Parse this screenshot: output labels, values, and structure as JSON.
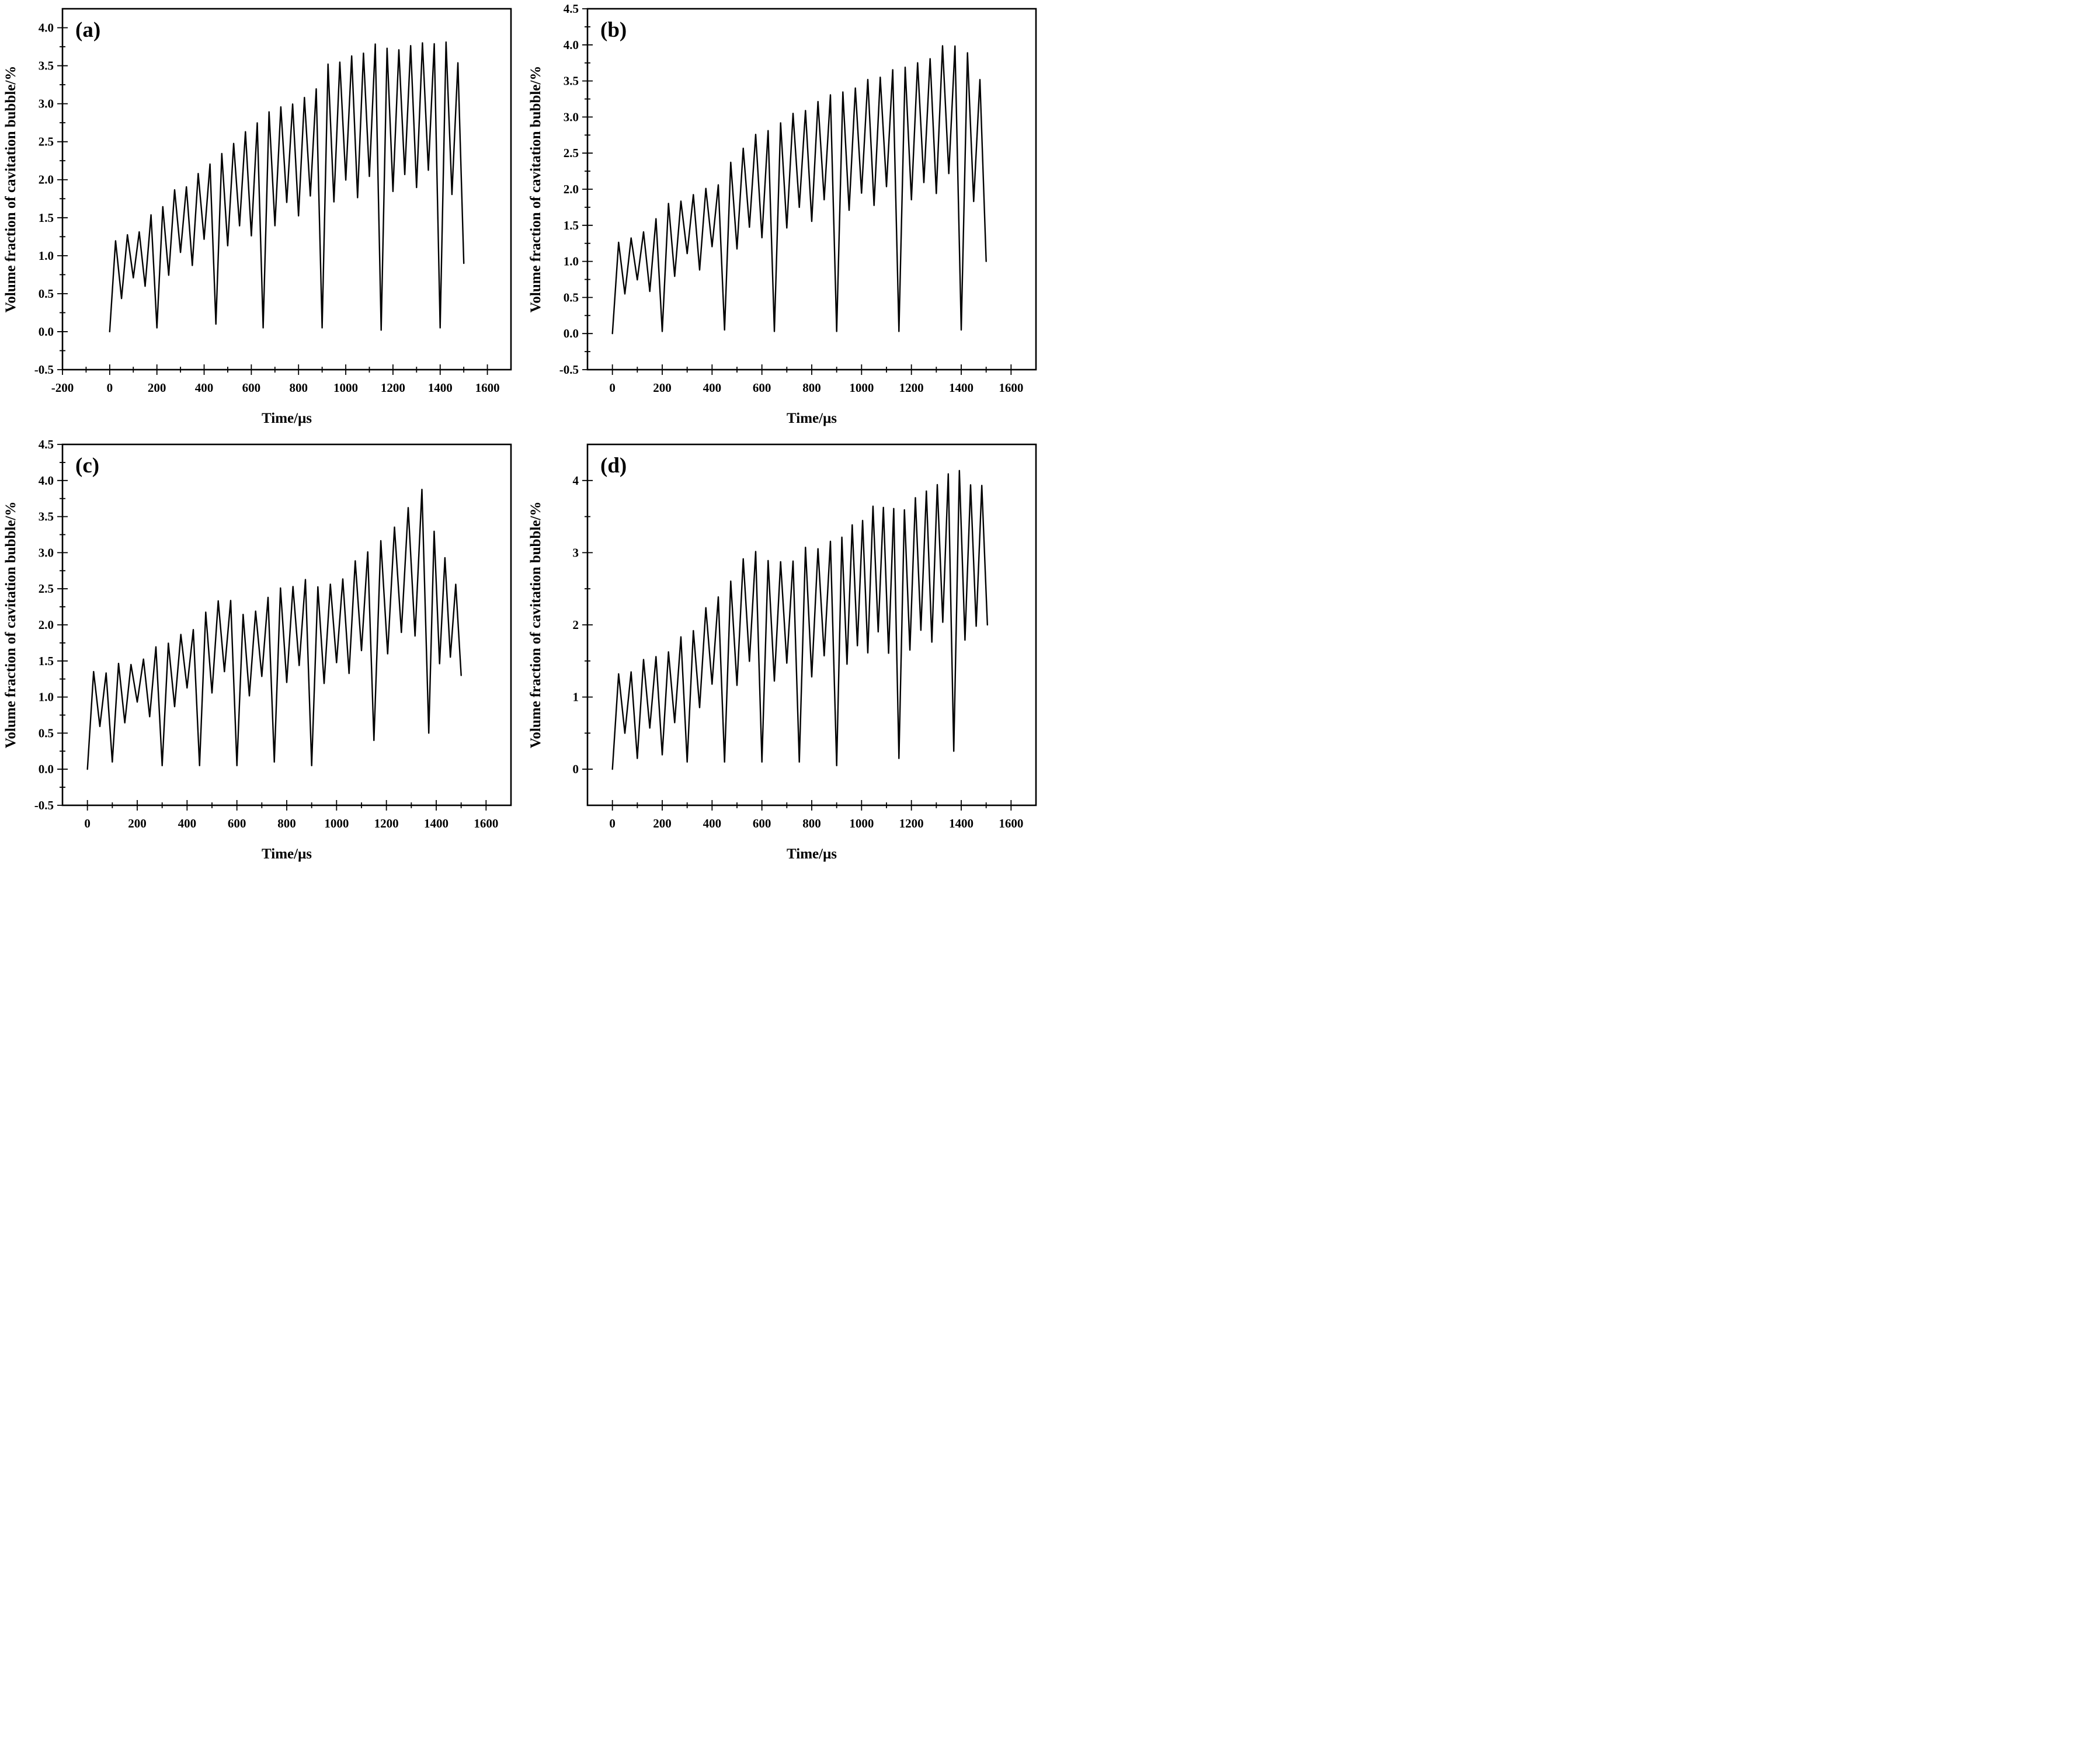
{
  "figure": {
    "background": "#ffffff",
    "line_color": "#000000",
    "description": "Four-panel line figure of cavitation bubble volume fraction oscillations versus time"
  },
  "chart_data": [
    {
      "id": "a",
      "type": "line",
      "panel_label": "(a)",
      "xlabel": "Time/μs",
      "ylabel": "Volume fraction of cavitation bubble/%",
      "xlim": [
        -200,
        1700
      ],
      "ylim": [
        -0.5,
        4.25
      ],
      "xticks": [
        -200,
        0,
        200,
        400,
        600,
        800,
        1000,
        1200,
        1400,
        1600
      ],
      "x_minor_step": 100,
      "yticks": [
        -0.5,
        0.0,
        0.5,
        1.0,
        1.5,
        2.0,
        2.5,
        3.0,
        3.5,
        4.0
      ],
      "ytick_decimals": 1,
      "y_minor_step": 0.25,
      "legend": "none",
      "grid": false,
      "line_color": "#000000",
      "series_model": {
        "period": 46,
        "peak0": 1.2,
        "trough_base": 0.62,
        "trough_k": 0.45,
        "trough_min": 0.3,
        "collapses": [
          [
            0,
            0.0
          ],
          [
            200,
            0.05
          ],
          [
            450,
            0.1
          ],
          [
            650,
            0.05
          ],
          [
            900,
            0.05
          ],
          [
            1150,
            0.02
          ],
          [
            1400,
            0.05
          ]
        ],
        "envelope": [
          [
            25,
            1.2
          ],
          [
            120,
            1.3
          ],
          [
            210,
            1.6
          ],
          [
            260,
            1.8
          ],
          [
            430,
            2.2
          ],
          [
            470,
            2.3
          ],
          [
            630,
            2.8
          ],
          [
            670,
            2.9
          ],
          [
            880,
            3.2
          ],
          [
            930,
            3.5
          ],
          [
            1120,
            3.75
          ],
          [
            1180,
            3.7
          ],
          [
            1330,
            3.85
          ],
          [
            1430,
            3.75
          ],
          [
            1480,
            3.45
          ]
        ],
        "t_end": 1500,
        "end_value": 0.9
      }
    },
    {
      "id": "b",
      "type": "line",
      "panel_label": "(b)",
      "xlabel": "Time/μs",
      "ylabel": "Volume fraction of cavitation bubble/%",
      "xlim": [
        -100,
        1700
      ],
      "ylim": [
        -0.5,
        4.5
      ],
      "xticks": [
        0,
        200,
        400,
        600,
        800,
        1000,
        1200,
        1400,
        1600
      ],
      "x_minor_step": 100,
      "yticks": [
        -0.5,
        0.0,
        0.5,
        1.0,
        1.5,
        2.0,
        2.5,
        3.0,
        3.5,
        4.0,
        4.5
      ],
      "ytick_decimals": 1,
      "y_minor_step": 0.25,
      "legend": "none",
      "grid": false,
      "line_color": "#000000",
      "series_model": {
        "period": 47,
        "peak0": 1.2,
        "trough_base": 0.6,
        "trough_k": 0.45,
        "trough_min": 0.35,
        "collapses": [
          [
            0,
            0.0
          ],
          [
            200,
            0.03
          ],
          [
            450,
            0.05
          ],
          [
            650,
            0.03
          ],
          [
            900,
            0.03
          ],
          [
            1150,
            0.03
          ],
          [
            1400,
            0.05
          ]
        ],
        "envelope": [
          [
            25,
            1.3
          ],
          [
            120,
            1.35
          ],
          [
            230,
            1.8
          ],
          [
            430,
            2.1
          ],
          [
            480,
            2.45
          ],
          [
            630,
            2.85
          ],
          [
            700,
            3.0
          ],
          [
            880,
            3.3
          ],
          [
            950,
            3.4
          ],
          [
            1100,
            3.6
          ],
          [
            1250,
            3.8
          ],
          [
            1340,
            4.0
          ],
          [
            1420,
            3.9
          ],
          [
            1470,
            3.55
          ]
        ],
        "t_end": 1500,
        "end_value": 1.0
      }
    },
    {
      "id": "c",
      "type": "line",
      "panel_label": "(c)",
      "xlabel": "Time/μs",
      "ylabel": "Volume fraction of cavitation bubble/%",
      "xlim": [
        -100,
        1700
      ],
      "ylim": [
        -0.5,
        4.5
      ],
      "xticks": [
        0,
        200,
        400,
        600,
        800,
        1000,
        1200,
        1400,
        1600
      ],
      "x_minor_step": 100,
      "yticks": [
        -0.5,
        0.0,
        0.5,
        1.0,
        1.5,
        2.0,
        2.5,
        3.0,
        3.5,
        4.0,
        4.5
      ],
      "ytick_decimals": 1,
      "y_minor_step": 0.25,
      "legend": "none",
      "grid": false,
      "line_color": "#000000",
      "series_model": {
        "period": 50,
        "peak0": 1.25,
        "trough_base": 0.55,
        "trough_k": 0.5,
        "trough_min": 0.3,
        "collapses": [
          [
            0,
            0.0
          ],
          [
            100,
            0.1
          ],
          [
            300,
            0.05
          ],
          [
            450,
            0.05
          ],
          [
            600,
            0.05
          ],
          [
            750,
            0.1
          ],
          [
            900,
            0.05
          ],
          [
            1150,
            0.4
          ],
          [
            1370,
            0.5
          ]
        ],
        "envelope": [
          [
            25,
            1.3
          ],
          [
            150,
            1.45
          ],
          [
            290,
            1.7
          ],
          [
            430,
            2.0
          ],
          [
            560,
            2.4
          ],
          [
            640,
            2.1
          ],
          [
            760,
            2.45
          ],
          [
            860,
            2.6
          ],
          [
            950,
            2.45
          ],
          [
            1060,
            2.8
          ],
          [
            1150,
            3.1
          ],
          [
            1260,
            3.5
          ],
          [
            1340,
            3.85
          ],
          [
            1400,
            3.15
          ],
          [
            1450,
            2.9
          ],
          [
            1480,
            2.55
          ]
        ],
        "t_end": 1500,
        "end_value": 1.3
      }
    },
    {
      "id": "d",
      "type": "line",
      "panel_label": "(d)",
      "xlabel": "Time/μs",
      "ylabel": "Volume fraction of cavitation bubble/%",
      "xlim": [
        -100,
        1700
      ],
      "ylim": [
        -0.5,
        4.5
      ],
      "xticks": [
        0,
        200,
        400,
        600,
        800,
        1000,
        1200,
        1400,
        1600
      ],
      "x_minor_step": 100,
      "yticks": [
        0,
        1,
        2,
        3,
        4
      ],
      "ytick_decimals": 0,
      "y_minor_step": 0.5,
      "legend": "none",
      "grid": false,
      "line_color": "#000000",
      "series_model": {
        "period": 45,
        "peak0": 1.25,
        "trough_base": 0.7,
        "trough_k": 0.5,
        "trough_min": 0.25,
        "collapses": [
          [
            0,
            0.0
          ],
          [
            100,
            0.15
          ],
          [
            200,
            0.2
          ],
          [
            300,
            0.1
          ],
          [
            450,
            0.1
          ],
          [
            600,
            0.1
          ],
          [
            750,
            0.1
          ],
          [
            900,
            0.05
          ],
          [
            1150,
            0.15
          ],
          [
            1370,
            0.25
          ]
        ],
        "envelope": [
          [
            25,
            1.3
          ],
          [
            150,
            1.55
          ],
          [
            290,
            1.8
          ],
          [
            440,
            2.5
          ],
          [
            570,
            3.05
          ],
          [
            650,
            2.8
          ],
          [
            760,
            3.0
          ],
          [
            860,
            3.1
          ],
          [
            950,
            3.3
          ],
          [
            1060,
            3.7
          ],
          [
            1150,
            3.55
          ],
          [
            1290,
            3.9
          ],
          [
            1395,
            4.15
          ],
          [
            1450,
            3.85
          ],
          [
            1490,
            3.95
          ]
        ],
        "t_end": 1505,
        "end_value": 2.0
      }
    }
  ]
}
